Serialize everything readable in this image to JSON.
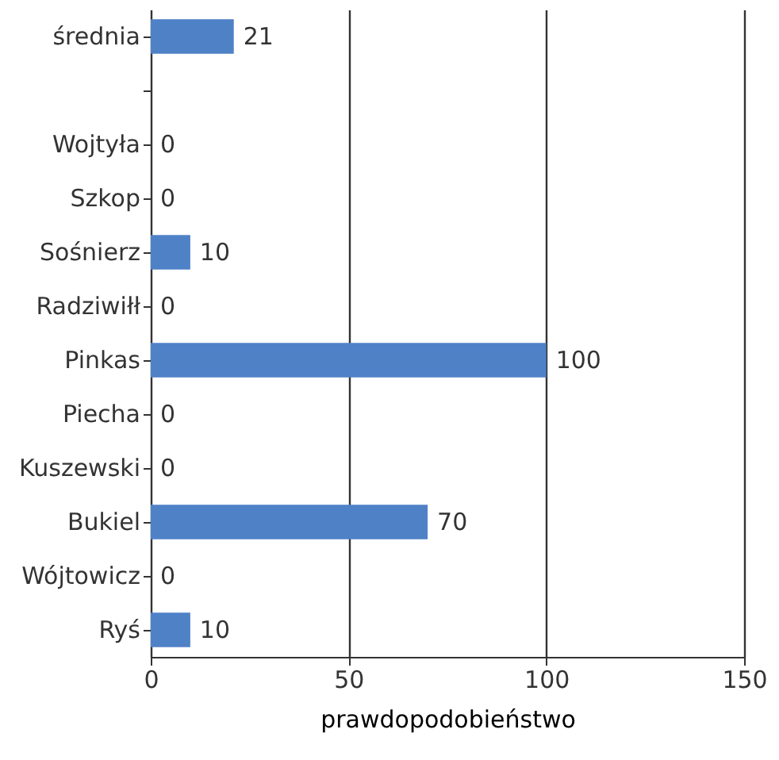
{
  "chart_data": {
    "type": "bar",
    "orientation": "horizontal",
    "xlabel": "prawdopodobieństwo",
    "categories": [
      "średnia",
      null,
      "Wojtyła",
      "Szkop",
      "Sośnierz",
      "Radziwiłł",
      "Pinkas",
      "Piecha",
      "Kuszewski",
      "Bukiel",
      "Wójtowicz",
      "Ryś"
    ],
    "values": [
      21,
      null,
      0,
      0,
      10,
      0,
      100,
      0,
      0,
      70,
      0,
      10
    ],
    "color": "#4f81c7",
    "xlim": [
      0,
      150
    ],
    "xticks": [
      0,
      50,
      100,
      150
    ],
    "grid": "x",
    "data_labels": true
  }
}
